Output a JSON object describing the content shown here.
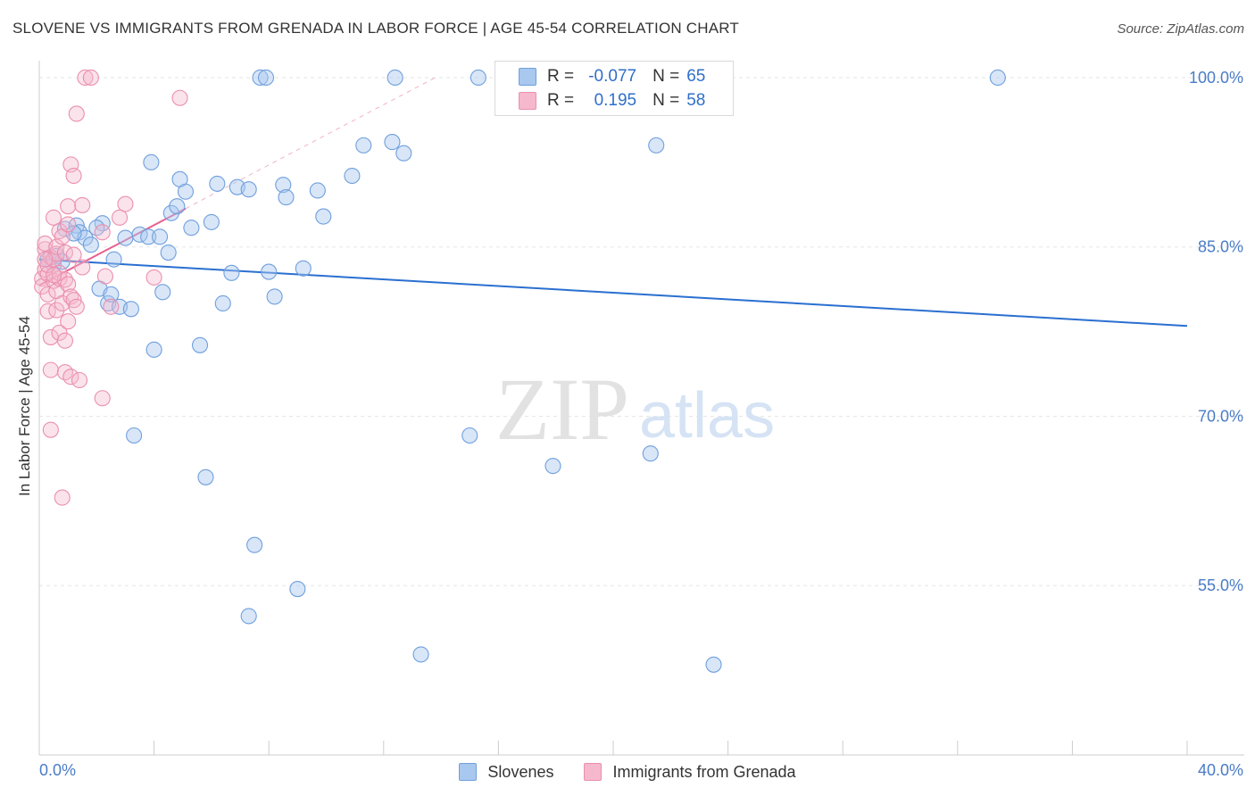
{
  "header": {
    "title": "SLOVENE VS IMMIGRANTS FROM GRENADA IN LABOR FORCE | AGE 45-54 CORRELATION CHART",
    "source": "Source: ZipAtlas.com"
  },
  "watermark": {
    "zip": "ZIP",
    "atlas": "atlas"
  },
  "legend": {
    "rows": [
      {
        "r_label": "R =",
        "r_value": "-0.077",
        "n_label": "N =",
        "n_value": "65"
      },
      {
        "r_label": "R =",
        "r_value": "0.195",
        "n_label": "N =",
        "n_value": "58"
      }
    ]
  },
  "bottom_legend": {
    "series1": "Slovenes",
    "series2": "Immigrants from Grenada"
  },
  "colors": {
    "blue_fill": "#a9c8ef",
    "blue_stroke": "#6f9fdd",
    "blue_line": "#2a6fd0",
    "pink_fill": "#f6b8cc",
    "pink_stroke": "#ea8fae",
    "pink_line": "#e8608f",
    "axis_text": "#4a7cc7",
    "grid": "#e6e6e6"
  },
  "chart_data": {
    "type": "scatter",
    "title": "SLOVENE VS IMMIGRANTS FROM GRENADA IN LABOR FORCE | AGE 45-54 CORRELATION CHART",
    "xlabel": "",
    "ylabel": "In Labor Force | Age 45-54",
    "xlim": [
      0,
      40
    ],
    "ylim": [
      40,
      101.5
    ],
    "x_tick_labels": [
      "0.0%",
      "40.0%"
    ],
    "y_ticks": [
      55,
      70,
      85,
      100
    ],
    "y_tick_labels": [
      "55.0%",
      "70.0%",
      "85.0%",
      "100.0%"
    ],
    "grid": true,
    "series": [
      {
        "name": "Slovenes",
        "R": -0.077,
        "N": 65,
        "trend": {
          "x": [
            0,
            40
          ],
          "y": [
            83.9,
            78.0
          ]
        },
        "points": [
          [
            0.3,
            83.9
          ],
          [
            0.5,
            83.4
          ],
          [
            0.9,
            86.6
          ],
          [
            1.3,
            86.9
          ],
          [
            1.4,
            86.3
          ],
          [
            1.6,
            85.8
          ],
          [
            1.8,
            85.2
          ],
          [
            2.1,
            81.3
          ],
          [
            2.2,
            87.1
          ],
          [
            2.4,
            80.0
          ],
          [
            2.5,
            80.8
          ],
          [
            2.6,
            83.9
          ],
          [
            2.8,
            79.7
          ],
          [
            3.0,
            85.8
          ],
          [
            3.2,
            79.5
          ],
          [
            3.5,
            86.1
          ],
          [
            3.8,
            85.9
          ],
          [
            3.9,
            92.5
          ],
          [
            4.0,
            75.9
          ],
          [
            4.2,
            85.9
          ],
          [
            4.3,
            81.0
          ],
          [
            4.5,
            84.5
          ],
          [
            4.6,
            88.0
          ],
          [
            4.8,
            88.6
          ],
          [
            4.9,
            91.0
          ],
          [
            5.1,
            89.9
          ],
          [
            5.3,
            86.7
          ],
          [
            5.6,
            76.3
          ],
          [
            6.0,
            87.2
          ],
          [
            6.2,
            90.6
          ],
          [
            6.4,
            80.0
          ],
          [
            6.7,
            82.7
          ],
          [
            6.9,
            90.3
          ],
          [
            7.3,
            90.1
          ],
          [
            7.7,
            100.0
          ],
          [
            7.9,
            100.0
          ],
          [
            8.0,
            82.8
          ],
          [
            8.2,
            80.6
          ],
          [
            8.5,
            90.5
          ],
          [
            8.6,
            89.4
          ],
          [
            9.2,
            83.1
          ],
          [
            9.7,
            90.0
          ],
          [
            9.9,
            87.7
          ],
          [
            10.9,
            91.3
          ],
          [
            11.3,
            94.0
          ],
          [
            12.3,
            94.3
          ],
          [
            12.4,
            100.0
          ],
          [
            12.7,
            93.3
          ],
          [
            15.3,
            100.0
          ],
          [
            21.5,
            94.0
          ],
          [
            33.4,
            100.0
          ],
          [
            3.3,
            68.3
          ],
          [
            5.8,
            64.6
          ],
          [
            7.5,
            58.6
          ],
          [
            7.3,
            52.3
          ],
          [
            9.0,
            54.7
          ],
          [
            13.3,
            48.9
          ],
          [
            15.0,
            68.3
          ],
          [
            17.9,
            65.6
          ],
          [
            21.3,
            66.7
          ],
          [
            23.5,
            48.0
          ],
          [
            0.6,
            84.2
          ],
          [
            1.2,
            86.2
          ],
          [
            0.8,
            83.7
          ],
          [
            2.0,
            86.7
          ]
        ]
      },
      {
        "name": "Immigrants from Grenada",
        "R": 0.195,
        "N": 58,
        "trend": {
          "x": [
            0,
            5.1
          ],
          "y": [
            81.6,
            88.4
          ]
        },
        "points": [
          [
            0.1,
            82.2
          ],
          [
            0.1,
            81.5
          ],
          [
            0.2,
            83.0
          ],
          [
            0.2,
            84.8
          ],
          [
            0.2,
            85.3
          ],
          [
            0.3,
            82.6
          ],
          [
            0.3,
            83.4
          ],
          [
            0.3,
            80.8
          ],
          [
            0.3,
            79.3
          ],
          [
            0.4,
            84.1
          ],
          [
            0.4,
            77.0
          ],
          [
            0.4,
            74.1
          ],
          [
            0.4,
            68.8
          ],
          [
            0.5,
            87.6
          ],
          [
            0.5,
            82.0
          ],
          [
            0.5,
            83.9
          ],
          [
            0.6,
            84.4
          ],
          [
            0.6,
            85.0
          ],
          [
            0.6,
            81.1
          ],
          [
            0.6,
            79.4
          ],
          [
            0.7,
            86.4
          ],
          [
            0.7,
            82.2
          ],
          [
            0.7,
            82.7
          ],
          [
            0.7,
            77.4
          ],
          [
            0.8,
            62.8
          ],
          [
            0.8,
            85.9
          ],
          [
            0.8,
            80.0
          ],
          [
            0.9,
            82.1
          ],
          [
            0.9,
            84.5
          ],
          [
            0.9,
            76.7
          ],
          [
            0.9,
            73.9
          ],
          [
            1.0,
            88.6
          ],
          [
            1.0,
            87.0
          ],
          [
            1.0,
            81.7
          ],
          [
            1.0,
            78.4
          ],
          [
            1.1,
            80.6
          ],
          [
            1.1,
            92.3
          ],
          [
            1.1,
            73.5
          ],
          [
            1.2,
            91.3
          ],
          [
            1.2,
            80.3
          ],
          [
            1.2,
            84.3
          ],
          [
            1.3,
            96.8
          ],
          [
            1.3,
            79.7
          ],
          [
            1.4,
            73.2
          ],
          [
            1.5,
            88.7
          ],
          [
            1.5,
            83.2
          ],
          [
            1.6,
            100.0
          ],
          [
            1.8,
            100.0
          ],
          [
            2.2,
            86.3
          ],
          [
            2.2,
            71.6
          ],
          [
            2.3,
            82.4
          ],
          [
            2.5,
            79.7
          ],
          [
            2.8,
            87.6
          ],
          [
            3.0,
            88.8
          ],
          [
            4.0,
            82.3
          ],
          [
            4.9,
            98.2
          ],
          [
            0.2,
            83.9
          ],
          [
            0.5,
            82.5
          ]
        ]
      }
    ]
  }
}
